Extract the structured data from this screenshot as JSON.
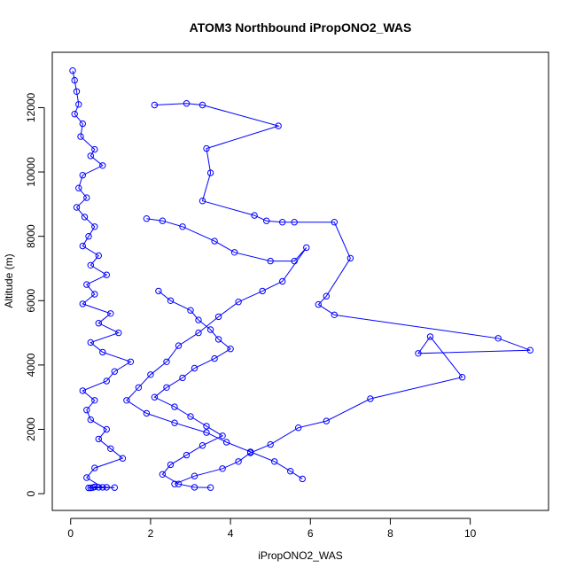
{
  "chart_data": {
    "type": "scatter",
    "title": "ATOM3 Northbound iPropONO2_WAS",
    "xlabel": "iPropONO2_WAS",
    "ylabel": "Altitude (m)",
    "xlim": [
      -0.46,
      11.96
    ],
    "ylim": [
      -520,
      13720
    ],
    "x_ticks": [
      "0",
      "2",
      "4",
      "6",
      "8",
      "10"
    ],
    "y_ticks": [
      "0",
      "2000",
      "4000",
      "6000",
      "8000",
      "10000",
      "12000"
    ],
    "grid": false,
    "legend": "none",
    "connected": true,
    "marker": "open-circle",
    "color": "#0000ff",
    "series": [
      {
        "x": [
          0.05,
          0.1,
          0.15,
          0.2,
          0.1,
          0.3,
          0.25,
          0.6,
          0.5,
          0.8,
          0.3,
          0.2,
          0.4,
          0.15,
          0.35,
          0.6,
          0.45,
          0.3,
          0.7,
          0.5,
          0.9,
          0.4,
          0.6,
          0.3,
          1.0,
          0.7,
          1.2,
          0.5,
          0.8,
          1.5,
          1.1,
          0.9,
          0.3,
          0.6,
          0.4,
          0.5,
          0.9,
          0.7,
          1.0,
          1.3,
          0.6,
          0.4,
          0.8,
          0.5,
          1.1,
          0.9,
          0.6,
          0.45,
          0.55,
          0.7
        ],
        "y": [
          13150,
          12850,
          12500,
          12100,
          11800,
          11500,
          11100,
          10700,
          10500,
          10200,
          9900,
          9500,
          9200,
          8900,
          8600,
          8300,
          8000,
          7700,
          7400,
          7100,
          6800,
          6500,
          6200,
          5900,
          5600,
          5300,
          5000,
          4700,
          4400,
          4100,
          3800,
          3500,
          3200,
          2900,
          2600,
          2300,
          2000,
          1700,
          1400,
          1100,
          800,
          500,
          200,
          180,
          190,
          200,
          210,
          180,
          190,
          200
        ]
      },
      {
        "x": [
          2.1,
          2.9,
          3.3,
          5.2,
          3.4,
          3.5,
          3.3,
          4.6,
          4.9,
          5.3,
          5.6,
          6.6,
          7.0,
          6.4,
          6.2,
          6.6,
          10.7,
          11.5,
          8.7,
          9.0,
          9.8,
          7.5,
          6.4,
          5.7,
          5.0,
          4.5,
          4.2,
          3.8,
          3.1,
          2.6
        ],
        "y": [
          12080,
          12130,
          12080,
          11430,
          10730,
          9970,
          9100,
          8650,
          8480,
          8440,
          8440,
          8440,
          7320,
          6140,
          5880,
          5560,
          4830,
          4460,
          4360,
          4880,
          3620,
          2950,
          2260,
          2050,
          1530,
          1270,
          1000,
          780,
          550,
          300
        ]
      },
      {
        "x": [
          1.9,
          2.3,
          2.8,
          3.6,
          4.1,
          5.0,
          5.6,
          5.9,
          5.3,
          4.8,
          4.2,
          3.7,
          3.2,
          2.7,
          2.4,
          2.0,
          1.7,
          1.4,
          1.9,
          2.6,
          3.4,
          3.9,
          4.5,
          5.1,
          5.5,
          5.8
        ],
        "y": [
          8550,
          8480,
          8300,
          7850,
          7500,
          7230,
          7230,
          7650,
          6600,
          6300,
          5960,
          5500,
          5000,
          4600,
          4100,
          3700,
          3300,
          2900,
          2500,
          2200,
          1900,
          1600,
          1300,
          1000,
          700,
          460
        ]
      },
      {
        "x": [
          2.2,
          2.5,
          3.0,
          3.2,
          3.5,
          3.7,
          4.0,
          3.6,
          3.1,
          2.8,
          2.4,
          2.1,
          2.6,
          3.0,
          3.4,
          3.8,
          3.3,
          2.9,
          2.5,
          2.3,
          2.7,
          3.1,
          3.5
        ],
        "y": [
          6300,
          6000,
          5700,
          5400,
          5100,
          4800,
          4500,
          4200,
          3900,
          3600,
          3300,
          3000,
          2700,
          2400,
          2100,
          1800,
          1500,
          1200,
          900,
          600,
          300,
          200,
          190
        ]
      }
    ]
  }
}
